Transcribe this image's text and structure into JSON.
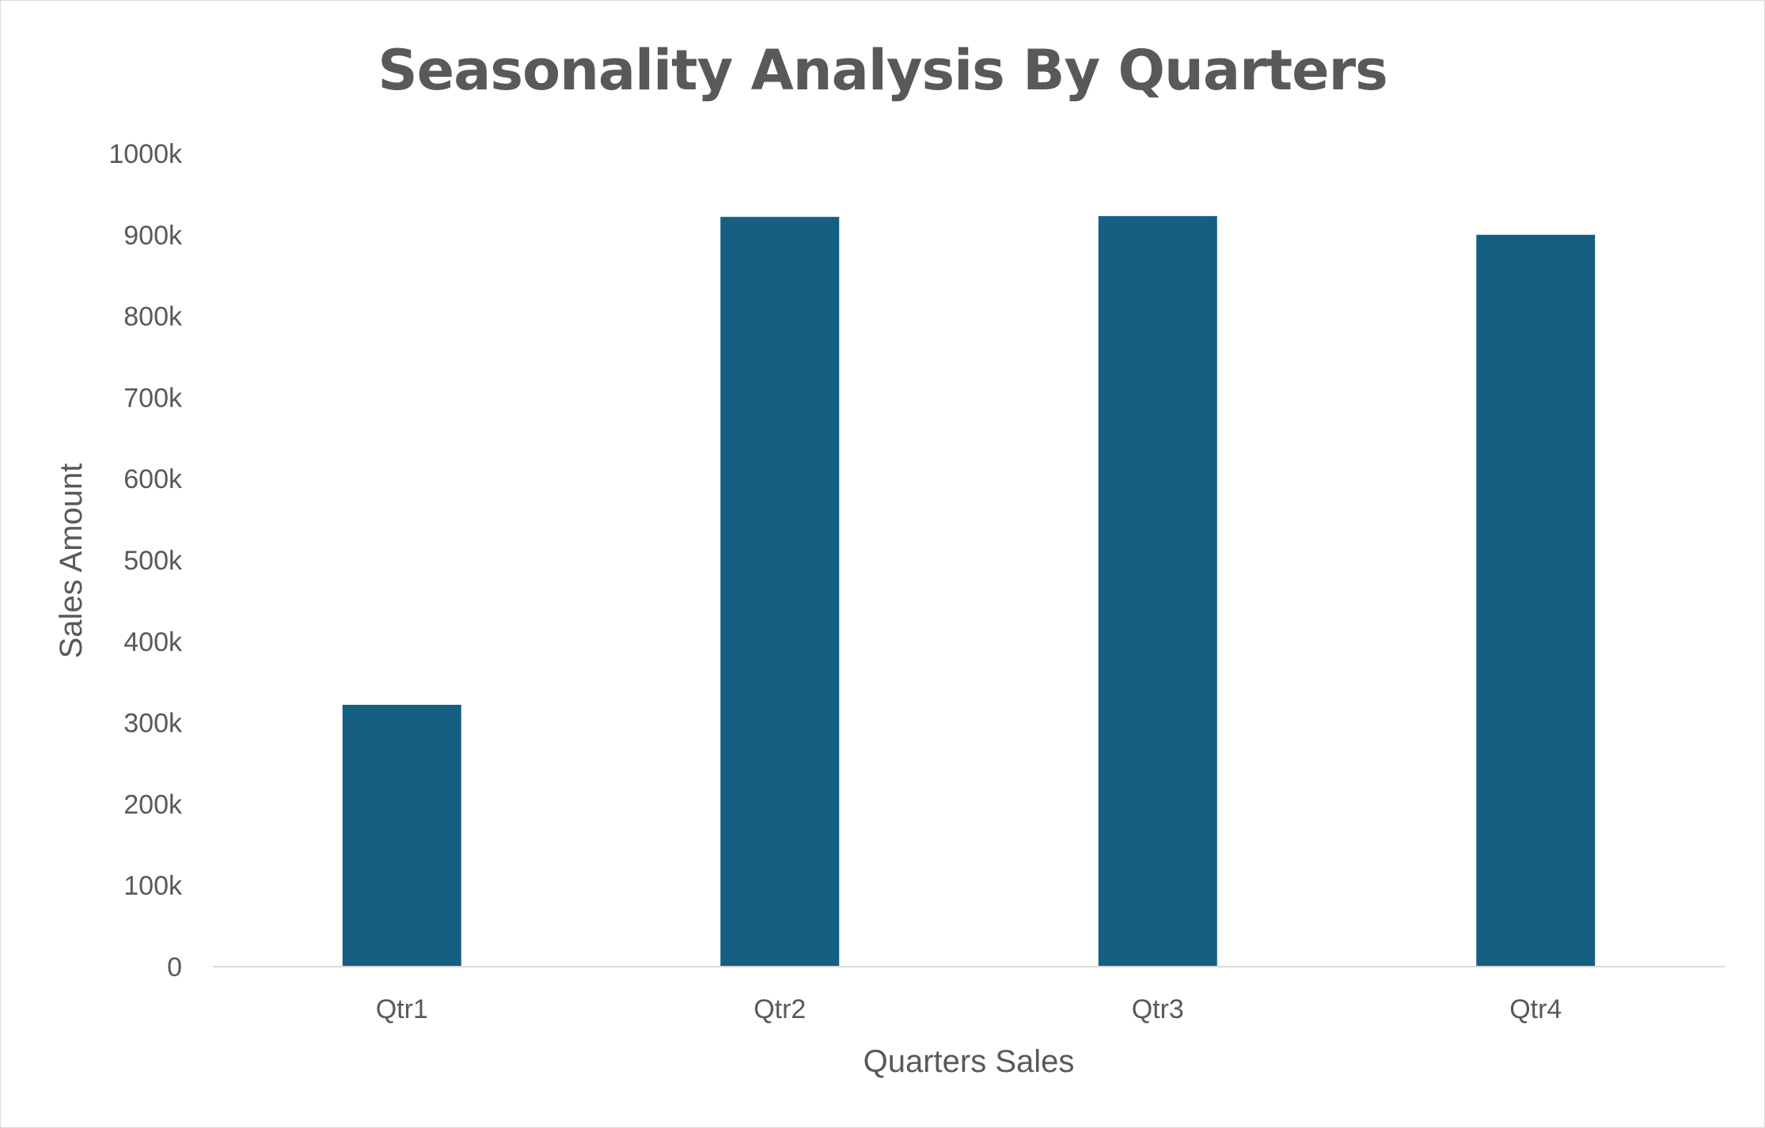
{
  "chart_data": {
    "type": "bar",
    "title": "Seasonality Analysis By Quarters",
    "xlabel": "Quarters Sales",
    "ylabel": "Sales Amount",
    "categories": [
      "Qtr1",
      "Qtr2",
      "Qtr3",
      "Qtr4"
    ],
    "values": [
      322000,
      922000,
      923000,
      900000
    ],
    "ylim": [
      0,
      1000000
    ],
    "yticks": [
      0,
      100000,
      200000,
      300000,
      400000,
      500000,
      600000,
      700000,
      800000,
      900000,
      1000000
    ],
    "ytick_labels": [
      "0",
      "100k",
      "200k",
      "300k",
      "400k",
      "500k",
      "600k",
      "700k",
      "800k",
      "900k",
      "1000k"
    ],
    "grid": false,
    "legend": "none"
  },
  "colors": {
    "bar": "#155f82",
    "text": "#595959",
    "axis_line": "#d9d9d9"
  }
}
